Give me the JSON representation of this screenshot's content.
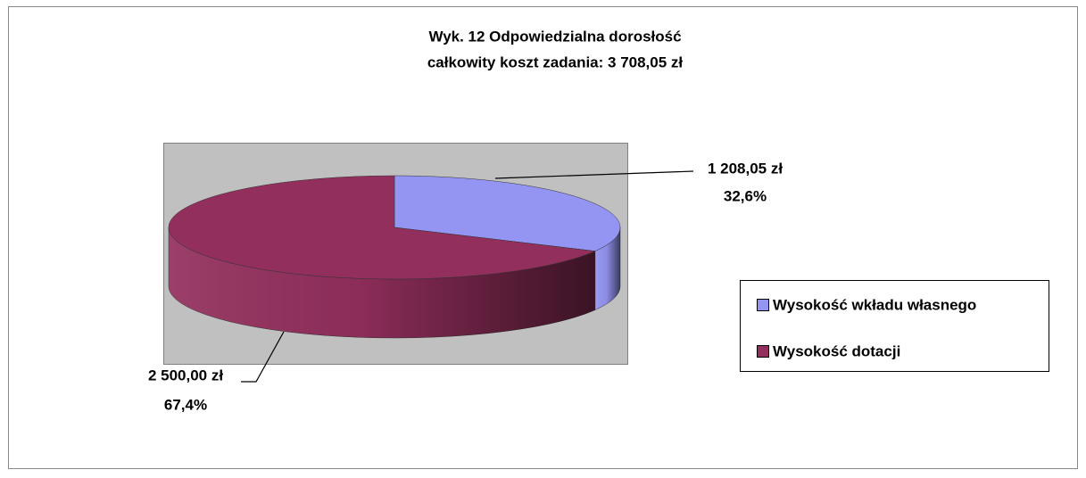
{
  "chart_data": {
    "type": "pie3d",
    "title": "Wyk.  12 Odpowiedzialna dorosłość",
    "subtitle": "całkowity koszt zadania: 3 708,05 zł",
    "categories": [
      "Wysokość wkładu własnego",
      "Wysokość dotacji"
    ],
    "values": [
      1208.05,
      2500.0
    ],
    "value_labels": [
      "1 208,05 zł",
      "2 500,00 zł"
    ],
    "percents": [
      32.6,
      67.4
    ],
    "percent_labels": [
      "32,6%",
      "67,4%"
    ],
    "colors": [
      "#9494f2",
      "#922f5c"
    ],
    "legend": "right"
  }
}
